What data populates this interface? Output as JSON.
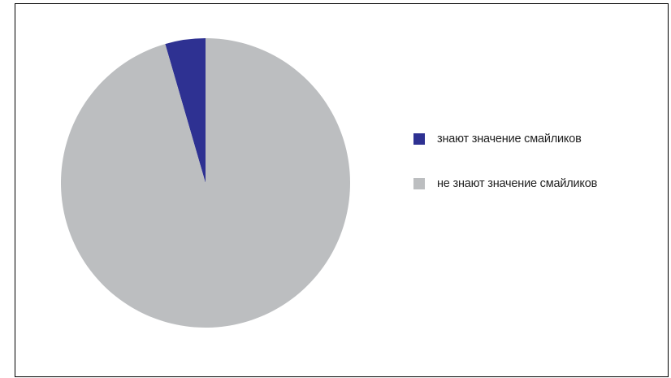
{
  "chart_data": {
    "type": "pie",
    "title": "",
    "slices": [
      {
        "name": "знают значение смайликов",
        "value": 4.5,
        "color": "#2e3192"
      },
      {
        "name": "не знают значение смайликов",
        "value": 95.5,
        "color": "#bcbec0"
      }
    ],
    "start_angle_deg": 0,
    "legend_position": "right"
  }
}
